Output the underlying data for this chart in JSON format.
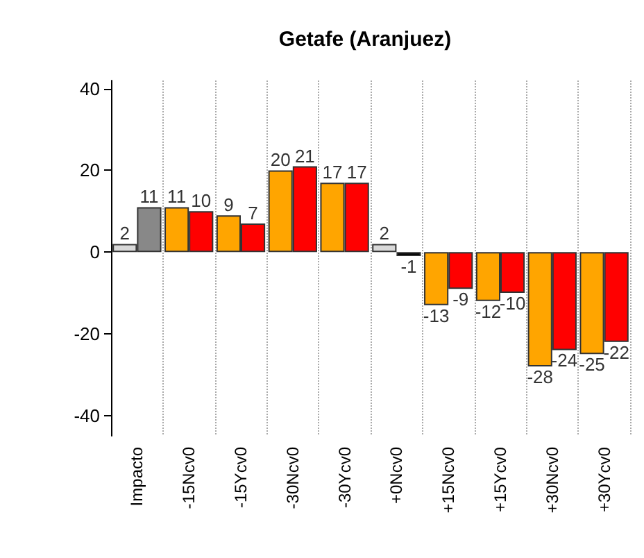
{
  "chart_data": {
    "type": "bar",
    "title": "Getafe (Aranjuez)",
    "categories": [
      "Impacto",
      "-15Ncv0",
      "-15Ycv0",
      "-30Ncv0",
      "-30Ycv0",
      "+0Ncv0",
      "+15Ncv0",
      "+15Ycv0",
      "+30Ncv0",
      "+30Ycv0"
    ],
    "series": [
      {
        "values": [
          2,
          11,
          9,
          20,
          17,
          2,
          -13,
          -12,
          -28,
          -25
        ],
        "colors": [
          "#d9d9d9",
          "#ffa500",
          "#ffa500",
          "#ffa500",
          "#ffa500",
          "#d9d9d9",
          "#ffa500",
          "#ffa500",
          "#ffa500",
          "#ffa500"
        ]
      },
      {
        "values": [
          11,
          10,
          7,
          21,
          17,
          -1,
          -9,
          -10,
          -24,
          -22
        ],
        "colors": [
          "#888888",
          "#ff0000",
          "#ff0000",
          "#ff0000",
          "#ff0000",
          "#000000",
          "#ff0000",
          "#ff0000",
          "#ff0000",
          "#ff0000"
        ]
      }
    ],
    "ylim": [
      -45,
      42
    ],
    "yticks": [
      -40,
      -20,
      0,
      20,
      40
    ],
    "grid": "x",
    "data_labels": true
  }
}
